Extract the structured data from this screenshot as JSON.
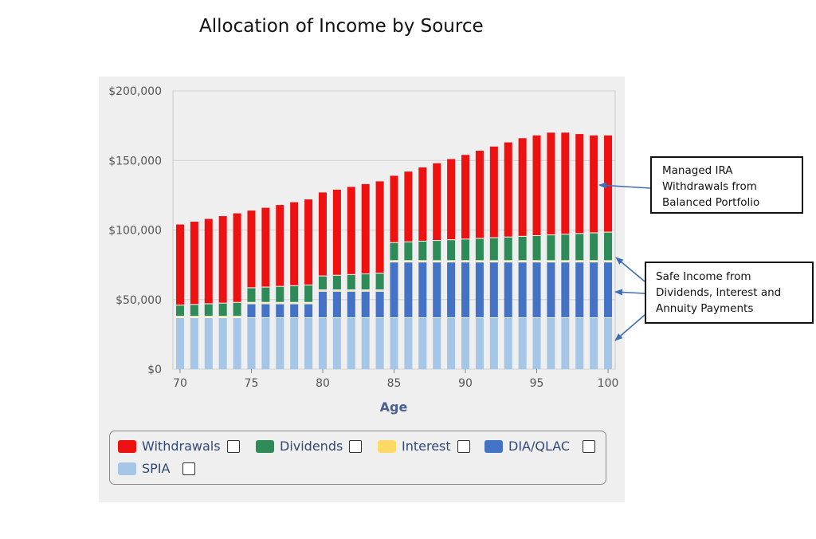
{
  "title": "Allocation of Income by Source",
  "chart_data": {
    "type": "bar",
    "stacked": true,
    "xlabel": "Age",
    "ylabel": "",
    "ylim": [
      0,
      200000
    ],
    "yticks": [
      "$0",
      "$50,000",
      "$100,000",
      "$150,000",
      "$200,000"
    ],
    "ytick_values": [
      0,
      50000,
      100000,
      150000,
      200000
    ],
    "xticks": [
      "70",
      "75",
      "80",
      "85",
      "90",
      "95",
      "100"
    ],
    "xtick_values": [
      70,
      75,
      80,
      85,
      90,
      95,
      100
    ],
    "grid": true,
    "legend_position": "bottom",
    "categories": [
      70,
      71,
      72,
      73,
      74,
      75,
      76,
      77,
      78,
      79,
      80,
      81,
      82,
      83,
      84,
      85,
      86,
      87,
      88,
      89,
      90,
      91,
      92,
      93,
      94,
      95,
      96,
      97,
      98,
      99,
      100
    ],
    "series": [
      {
        "name": "SPIA",
        "color": "#a5c6e6",
        "values": [
          37000,
          37000,
          37000,
          37000,
          37000,
          37000,
          37000,
          37000,
          37000,
          37000,
          37000,
          37000,
          37000,
          37000,
          37000,
          37000,
          37000,
          37000,
          37000,
          37000,
          37000,
          37000,
          37000,
          37000,
          37000,
          37000,
          37000,
          37000,
          37000,
          37000,
          37000
        ]
      },
      {
        "name": "DIA/QLAC",
        "color": "#4472c4",
        "values": [
          0,
          0,
          0,
          0,
          0,
          10000,
          10000,
          10000,
          10000,
          10000,
          19000,
          19000,
          19000,
          19000,
          19000,
          40000,
          40000,
          40000,
          40000,
          40000,
          40000,
          40000,
          40000,
          40000,
          40000,
          40000,
          40000,
          40000,
          40000,
          40000,
          40000
        ]
      },
      {
        "name": "Interest",
        "color": "#ffd966",
        "values": [
          1000,
          1000,
          1000,
          1000,
          1000,
          1000,
          1000,
          1000,
          1000,
          1000,
          1000,
          1000,
          1000,
          1000,
          1000,
          1000,
          1000,
          1000,
          1000,
          1000,
          1000,
          1000,
          1000,
          1000,
          1000,
          1000,
          1000,
          1000,
          1000,
          1000,
          1000
        ]
      },
      {
        "name": "Dividends",
        "color": "#2e8b57",
        "values": [
          8000,
          8500,
          9000,
          9500,
          10000,
          10500,
          11000,
          11500,
          12000,
          12500,
          10000,
          10500,
          11000,
          11500,
          12000,
          13000,
          13500,
          14000,
          14500,
          15000,
          15500,
          16000,
          16500,
          17000,
          17500,
          18000,
          18500,
          19000,
          19500,
          20000,
          20500
        ]
      },
      {
        "name": "Withdrawals",
        "color": "#ee1111",
        "values": [
          58000,
          59500,
          61000,
          62500,
          64000,
          55500,
          57000,
          58500,
          60000,
          61500,
          60000,
          61500,
          63000,
          64500,
          66000,
          48000,
          50500,
          53000,
          55500,
          58000,
          60500,
          63000,
          65500,
          68000,
          70500,
          72000,
          73500,
          73000,
          71500,
          70000,
          69500
        ]
      }
    ]
  },
  "legend": {
    "items": [
      {
        "label": "Withdrawals",
        "color": "#ee1111"
      },
      {
        "label": "Dividends",
        "color": "#2e8b57"
      },
      {
        "label": "Interest",
        "color": "#ffd966"
      },
      {
        "label": "DIA/QLAC",
        "color": "#4472c4"
      },
      {
        "label": "SPIA",
        "color": "#a5c6e6"
      }
    ]
  },
  "callouts": {
    "top": {
      "line1": "Managed IRA",
      "line2": "Withdrawals from",
      "line3": "Balanced Portfolio"
    },
    "bottom": {
      "line1": "Safe Income from",
      "line2": "Dividends, Interest and",
      "line3": "Annuity Payments"
    }
  },
  "colors": {
    "panel_bg": "#efefef",
    "grid": "#d2d2d2",
    "arrow": "#3d6db5"
  }
}
